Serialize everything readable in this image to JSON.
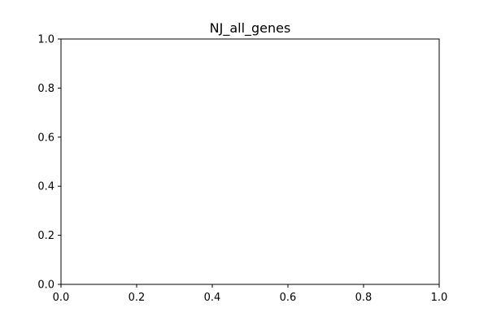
{
  "chart_data": {
    "type": "line",
    "title": "NJ_all_genes",
    "xlabel": "",
    "ylabel": "",
    "series": [],
    "xlim": [
      0.0,
      1.0
    ],
    "ylim": [
      0.0,
      1.0
    ],
    "x_ticks": [
      0.0,
      0.2,
      0.4,
      0.6,
      0.8,
      1.0
    ],
    "y_ticks": [
      0.0,
      0.2,
      0.4,
      0.6,
      0.8,
      1.0
    ],
    "x_tick_labels": [
      "0.0",
      "0.2",
      "0.4",
      "0.6",
      "0.8",
      "1.0"
    ],
    "y_tick_labels": [
      "0.0",
      "0.2",
      "0.4",
      "0.6",
      "0.8",
      "1.0"
    ],
    "grid": false,
    "legend": "none"
  }
}
